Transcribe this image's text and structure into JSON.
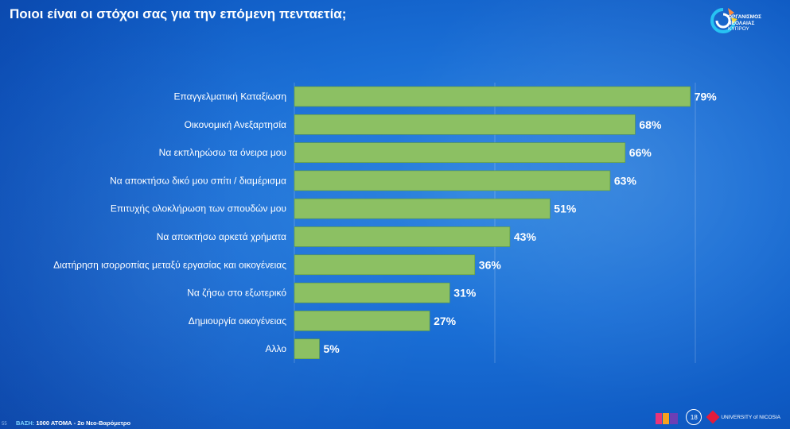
{
  "title": "Ποιοι είναι οι στόχοι σας για την επόμενη πενταετία;",
  "logo": {
    "line1": "ΟΡΓΑΝΙΣΜΟΣ",
    "line2": "ΝΕΟΛΑΙΑΣ",
    "line3": "ΚΥΠΡΟΥ"
  },
  "footer": {
    "page_number": "55",
    "base_label": "ΒΑΣΗ:",
    "base_value": "1000 ΑΤΟΜΑ - 2ο Νεο-Βαρόμετρο",
    "university": "UNIVERSITY of NICOSIA",
    "seal_text": "18"
  },
  "colors": {
    "bar": "#8cc063",
    "bar_border": "#5e9a3d",
    "text": "#ffffff"
  },
  "chart_data": {
    "type": "bar",
    "orientation": "horizontal",
    "categories": [
      "Επαγγελματική Καταξίωση",
      "Οικονομική Ανεξαρτησία",
      "Να εκπληρώσω τα όνειρα μου",
      "Να αποκτήσω δικό μου σπίτι / διαμέρισμα",
      "Επιτυχής ολοκλήρωση των σπουδών μου",
      "Να αποκτήσω αρκετά χρήματα",
      "Διατήρηση ισορροπίας μεταξύ εργασίας και οικογένειας",
      "Να ζήσω στο εξωτερικό",
      "Δημιουργία οικογένειας",
      "Αλλο"
    ],
    "values": [
      79,
      68,
      66,
      63,
      51,
      43,
      36,
      31,
      27,
      5
    ],
    "value_labels": [
      "79%",
      "68%",
      "66%",
      "63%",
      "51%",
      "43%",
      "36%",
      "31%",
      "27%",
      "5%"
    ],
    "xlim": [
      0,
      100
    ],
    "grid": true
  }
}
